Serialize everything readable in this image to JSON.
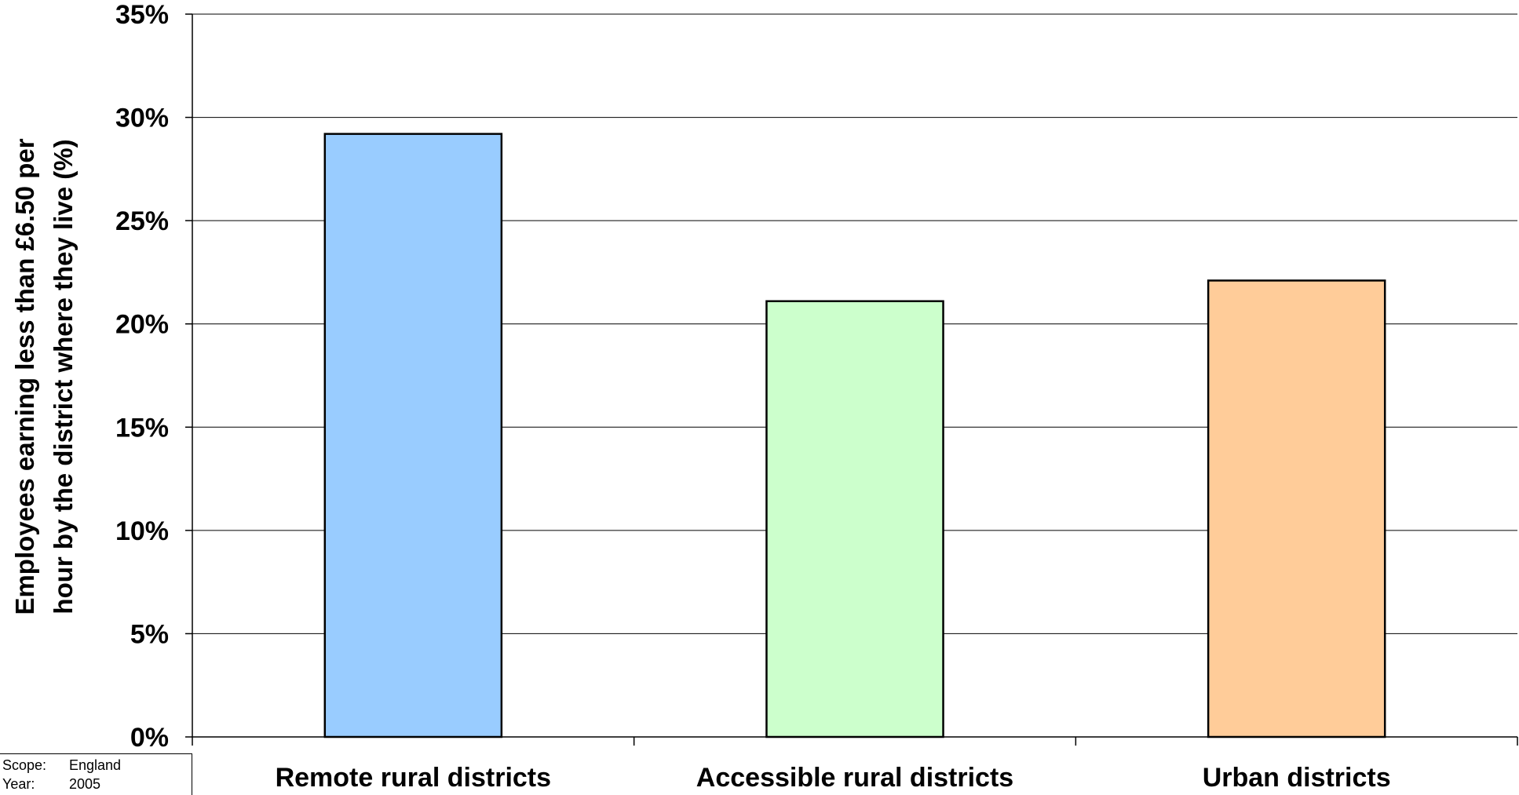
{
  "chart_data": {
    "type": "bar",
    "categories": [
      "Remote rural districts",
      "Accessible rural districts",
      "Urban districts"
    ],
    "values": [
      29.2,
      21.1,
      22.1
    ],
    "colors": [
      "#99CCFF",
      "#CCFFCC",
      "#FFCC99"
    ],
    "ylabel_line1": "Employees earning less than £6.50 per",
    "ylabel_line2": "hour by the district where they live (%)",
    "ylim": [
      0,
      35
    ],
    "yticks": [
      0,
      5,
      10,
      15,
      20,
      25,
      30,
      35
    ],
    "ytick_labels": [
      "0%",
      "5%",
      "10%",
      "15%",
      "20%",
      "25%",
      "30%",
      "35%"
    ],
    "grid": true,
    "legend": "none"
  },
  "info": {
    "scope_label": "Scope:",
    "scope_value": "England",
    "year_label": "Year:",
    "year_value": "2005"
  }
}
